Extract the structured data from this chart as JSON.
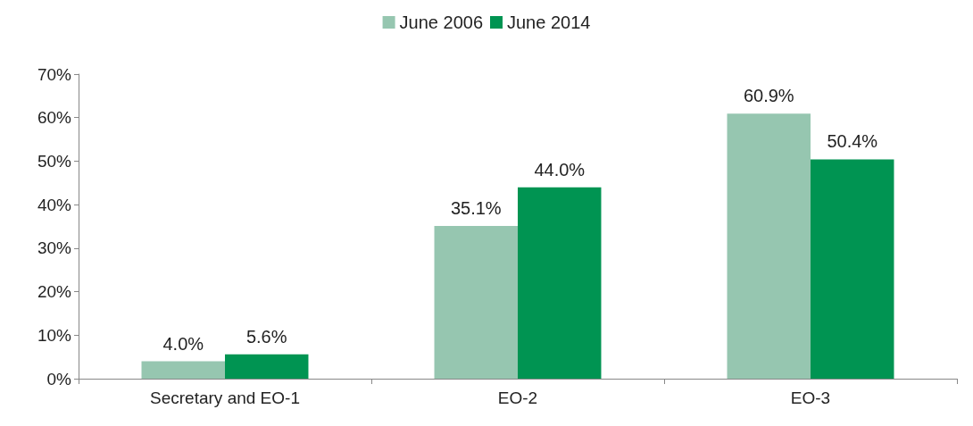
{
  "chart_data": {
    "type": "bar",
    "categories": [
      "Secretary and EO-1",
      "EO-2",
      "EO-3"
    ],
    "series": [
      {
        "name": "June 2006",
        "color": "#96c6b0",
        "values": [
          4.0,
          35.1,
          60.9
        ],
        "value_labels": [
          "4.0%",
          "35.1%",
          "60.9%"
        ]
      },
      {
        "name": "June 2014",
        "color": "#009452",
        "values": [
          5.6,
          44.0,
          50.4
        ],
        "value_labels": [
          "5.6%",
          "44.0%",
          "50.4%"
        ]
      }
    ],
    "ylim": [
      0,
      70
    ],
    "yticks": [
      {
        "value": 0,
        "label": "0%"
      },
      {
        "value": 10,
        "label": "10%"
      },
      {
        "value": 20,
        "label": "20%"
      },
      {
        "value": 30,
        "label": "30%"
      },
      {
        "value": 40,
        "label": "40%"
      },
      {
        "value": 50,
        "label": "50%"
      },
      {
        "value": 60,
        "label": "60%"
      },
      {
        "value": 70,
        "label": "70%"
      }
    ],
    "grid": false,
    "legend": "top"
  }
}
